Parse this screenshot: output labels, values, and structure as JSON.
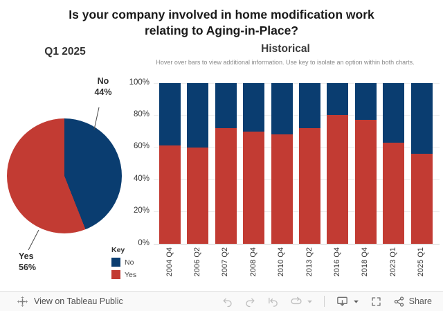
{
  "page": {
    "title_lines": [
      "Is your company involved in home modification work",
      "relating to Aging-in-Place?"
    ]
  },
  "pie_panel": {
    "title": "Q1 2025",
    "callouts": [
      {
        "label": "No",
        "pct": "44%"
      },
      {
        "label": "Yes",
        "pct": "56%"
      }
    ]
  },
  "historical_panel": {
    "title": "Historical",
    "subtitle": "Hover over bars to view additional information. Use key to isolate an option within both charts."
  },
  "legend": {
    "title": "Key",
    "items": [
      {
        "label": "No",
        "color": "#0a3d70"
      },
      {
        "label": "Yes",
        "color": "#c23b33"
      }
    ]
  },
  "chart_data": [
    {
      "type": "pie",
      "title": "Q1 2025",
      "labels": [
        "No",
        "Yes"
      ],
      "values": [
        44,
        56
      ],
      "colors": [
        "#0a3d70",
        "#c23b33"
      ],
      "start_angle": "top",
      "direction": "clockwise"
    },
    {
      "type": "bar",
      "stacked": true,
      "title": "Historical",
      "categories": [
        "2004 Q4",
        "2006 Q2",
        "2007 Q2",
        "2008 Q4",
        "2010 Q4",
        "2013 Q2",
        "2016 Q4",
        "2018 Q4",
        "2023 Q1",
        "2025 Q1"
      ],
      "series": [
        {
          "name": "Yes",
          "color": "#c23b33",
          "values": [
            61,
            60,
            72,
            70,
            68,
            72,
            80,
            77,
            63,
            56
          ]
        },
        {
          "name": "No",
          "color": "#0a3d70",
          "values": [
            39,
            40,
            28,
            30,
            32,
            28,
            20,
            23,
            37,
            44
          ]
        }
      ],
      "ylim": [
        0,
        100
      ],
      "yticks": [
        0,
        20,
        40,
        60,
        80,
        100
      ],
      "ytick_labels": [
        "0%",
        "20%",
        "40%",
        "60%",
        "80%",
        "100%"
      ],
      "grid": true,
      "legend_title": "Key",
      "legend_position": "bottom-left",
      "x_labels_rotated": true
    }
  ],
  "toolbar": {
    "view_on_label": "View on Tableau Public",
    "share_label": "Share",
    "icons": [
      "tableau-logo",
      "undo",
      "redo",
      "reset",
      "replay",
      "caret-down",
      "download",
      "caret-down",
      "fullscreen",
      "share"
    ]
  },
  "colors": {
    "no_blue": "#0a3d70",
    "yes_red": "#c23b33",
    "title_text": "#191919",
    "subtitle_gray": "#8a8a8a",
    "axis_text": "#333333",
    "gridline": "#ececec",
    "toolbar_bg": "#f9f9f9",
    "toolbar_icon_disabled": "#bfbfbf",
    "toolbar_icon": "#6f6f6f"
  }
}
